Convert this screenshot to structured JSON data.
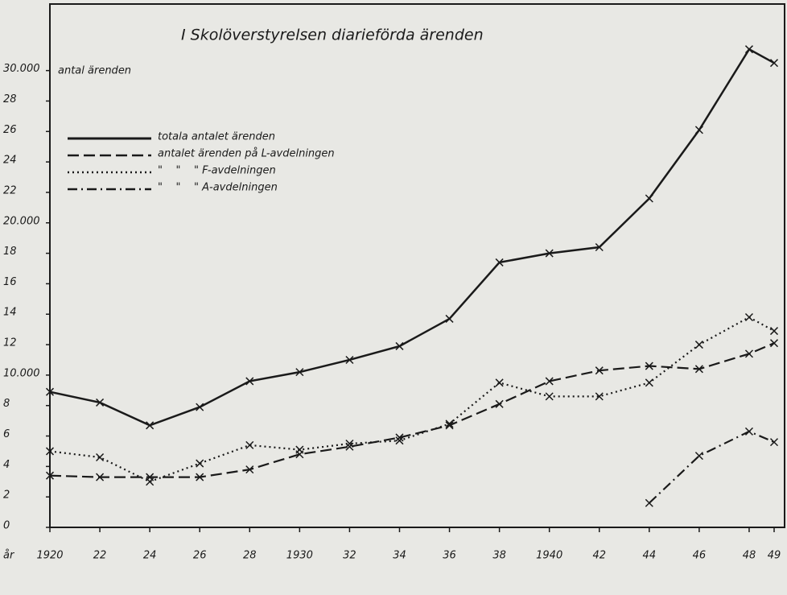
{
  "chart_data": {
    "type": "line",
    "title": "I Skolöverstyrelsen diarieförda ärenden",
    "y_label": "antal ärenden",
    "x_label": "år",
    "x": [
      1920,
      1922,
      1924,
      1926,
      1928,
      1930,
      1932,
      1934,
      1936,
      1938,
      1940,
      1942,
      1944,
      1946,
      1948,
      1949
    ],
    "xlim": [
      1920,
      1949
    ],
    "xticks": [
      1920,
      {
        "value": 1922,
        "label": "22"
      },
      {
        "value": 1924,
        "label": "24"
      },
      {
        "value": 1926,
        "label": "26"
      },
      {
        "value": 1928,
        "label": "28"
      },
      1930,
      {
        "value": 1932,
        "label": "32"
      },
      {
        "value": 1934,
        "label": "34"
      },
      {
        "value": 1936,
        "label": "36"
      },
      {
        "value": 1938,
        "label": "38"
      },
      1940,
      {
        "value": 1942,
        "label": "42"
      },
      {
        "value": 1944,
        "label": "44"
      },
      {
        "value": 1946,
        "label": "46"
      },
      {
        "value": 1948,
        "label": "48"
      },
      {
        "value": 1949,
        "label": "49"
      }
    ],
    "ylim": [
      0,
      34000
    ],
    "yticks": [
      0,
      {
        "value": 2000,
        "label": "2"
      },
      {
        "value": 4000,
        "label": "4"
      },
      {
        "value": 6000,
        "label": "6"
      },
      {
        "value": 8000,
        "label": "8"
      },
      {
        "value": 10000,
        "label": "10.000"
      },
      {
        "value": 12000,
        "label": "12"
      },
      {
        "value": 14000,
        "label": "14"
      },
      {
        "value": 16000,
        "label": "16"
      },
      {
        "value": 18000,
        "label": "18"
      },
      {
        "value": 20000,
        "label": "20.000"
      },
      {
        "value": 22000,
        "label": "22"
      },
      {
        "value": 24000,
        "label": "24"
      },
      {
        "value": 26000,
        "label": "26"
      },
      {
        "value": 28000,
        "label": "28"
      },
      {
        "value": 30000,
        "label": "30.000"
      }
    ],
    "grid": false,
    "legend": "upper left",
    "series": [
      {
        "name": "totala antalet ärenden",
        "color": "#1a1a1a",
        "dash": "solid",
        "values": [
          8900,
          8200,
          6700,
          7900,
          9600,
          10200,
          11000,
          11900,
          13700,
          17400,
          18000,
          18400,
          21600,
          26100,
          31400,
          30500
        ]
      },
      {
        "name": "antalet ärenden på L-avdelningen",
        "color": "#1a1a1a",
        "dash": "dashed",
        "values": [
          3400,
          3300,
          3300,
          3300,
          3800,
          4800,
          5300,
          5900,
          6700,
          8100,
          9600,
          10300,
          10600,
          10400,
          11400,
          12100
        ]
      },
      {
        "name": "\"    \"    \" F-avdelningen",
        "color": "#1a1a1a",
        "dash": "dotted",
        "values": [
          5000,
          4600,
          3000,
          4200,
          5400,
          5100,
          5500,
          5700,
          6800,
          9500,
          8600,
          8600,
          9500,
          12000,
          13800,
          12900
        ]
      },
      {
        "name": "\"    \"    \" A-avdelningen",
        "color": "#1a1a1a",
        "dash": "dashdot",
        "values": [
          null,
          null,
          null,
          null,
          null,
          null,
          null,
          null,
          null,
          null,
          null,
          null,
          1600,
          4700,
          6300,
          5600
        ]
      }
    ]
  }
}
